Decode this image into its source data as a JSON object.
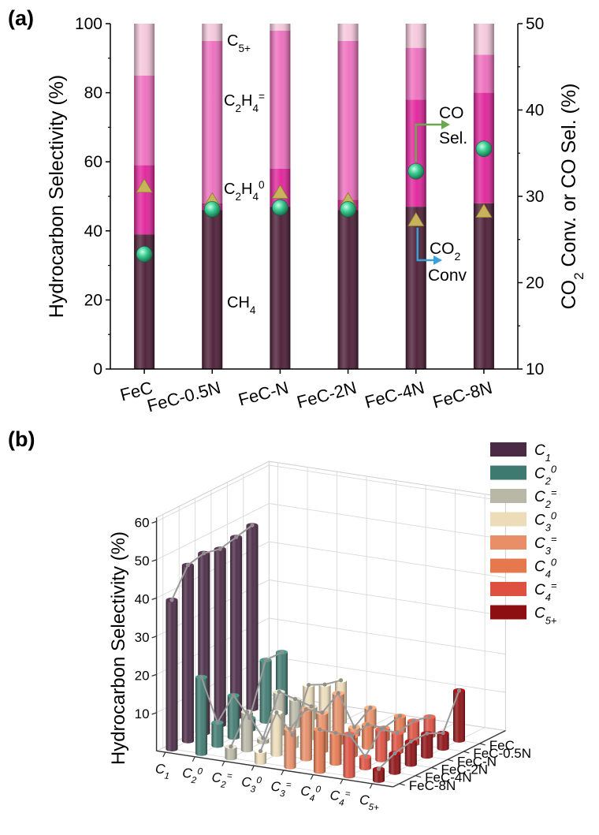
{
  "chart_data": [
    {
      "panel": "(a)",
      "type": "bar",
      "subtype": "stacked bar with dual-axis scatter",
      "categories": [
        "FeC",
        "FeC-0.5N",
        "FeC-N",
        "FeC-2N",
        "FeC-4N",
        "FeC-8N"
      ],
      "ylabel": "Hydrocarbon Selectivity (%)",
      "ylim": [
        0,
        100
      ],
      "yticks": [
        "0",
        "20",
        "40",
        "60",
        "80",
        "100"
      ],
      "y2label": "CO2 Conv. or CO Sel. (%)",
      "y2lim": [
        10,
        50
      ],
      "y2ticks": [
        "10",
        "20",
        "30",
        "40",
        "50"
      ],
      "series": [
        {
          "name": "CH4",
          "label": "CH",
          "label_sub": "4",
          "color": "#4a1a33",
          "values": [
            39,
            46,
            47,
            46,
            47,
            48
          ]
        },
        {
          "name": "C2H4 0",
          "label": "C",
          "label_sub": "2",
          "label_mid": "H",
          "label_sub2": "4",
          "label_sup": "0",
          "color": "#e0209a",
          "values": [
            20,
            2,
            11,
            3,
            31,
            32
          ]
        },
        {
          "name": "C2H4 =",
          "label": "C",
          "label_sub": "2",
          "label_mid": "H",
          "label_sub2": "4",
          "label_sup": "=",
          "color": "#ee6cbd",
          "values": [
            26,
            47,
            40,
            46,
            15,
            11
          ]
        },
        {
          "name": "C5+",
          "label": "C",
          "label_sub": "5+",
          "color": "#f4c6da",
          "values": [
            15,
            5,
            2,
            5,
            7,
            9
          ]
        }
      ],
      "scatter": [
        {
          "name": "CO2 Conv.",
          "axis": "right",
          "marker": "triangle",
          "color": "#c8b25a",
          "values": [
            31.2,
            29.6,
            30.5,
            29.6,
            27.3,
            28.3
          ]
        },
        {
          "name": "CO Sel.",
          "axis": "right",
          "marker": "sphere",
          "color": "#3fcf95",
          "values": [
            23.3,
            28.5,
            28.7,
            28.5,
            32.9,
            35.5
          ]
        }
      ],
      "annotations": [
        {
          "text": "CO",
          "text2": "Sel.",
          "arrow_color": "#6aa84f"
        },
        {
          "text": "CO",
          "text_sub": "2",
          "text2": "Conv",
          "arrow_color": "#3aa0d8"
        }
      ]
    },
    {
      "panel": "(b)",
      "type": "bar",
      "subtype": "3d bar",
      "zlabel": "Hydrocarbon Selectivity (%)",
      "zlim": [
        0,
        60
      ],
      "zticks": [
        "10",
        "20",
        "30",
        "40",
        "50",
        "60"
      ],
      "x_categories": [
        {
          "main": "C",
          "sub": "1",
          "sup": ""
        },
        {
          "main": "C",
          "sub": "2",
          "sup": "0"
        },
        {
          "main": "C",
          "sub": "2",
          "sup": "="
        },
        {
          "main": "C",
          "sub": "3",
          "sup": "0"
        },
        {
          "main": "C",
          "sub": "3",
          "sup": "="
        },
        {
          "main": "C",
          "sub": "4",
          "sup": "0"
        },
        {
          "main": "C",
          "sub": "4",
          "sup": "="
        },
        {
          "main": "C",
          "sub": "5+",
          "sup": ""
        }
      ],
      "y_categories": [
        "FeC",
        "FeC-0.5N",
        "FeC-N",
        "FeC-2N",
        "FeC-4N",
        "FeC-8N"
      ],
      "legend_colors": [
        "#4a2a45",
        "#3f7a70",
        "#b9b8a6",
        "#ecdcb9",
        "#e88f68",
        "#e6784d",
        "#de5040",
        "#8e0f12"
      ],
      "values": [
        [
          39,
          46,
          47,
          46,
          47,
          48
        ],
        [
          20,
          6,
          11,
          3,
          16,
          16
        ],
        [
          3,
          10,
          1,
          11,
          7,
          3
        ],
        [
          3,
          11,
          3,
          14,
          12,
          11
        ],
        [
          10,
          13,
          10,
          13,
          2,
          5
        ],
        [
          11,
          8,
          5,
          6,
          3,
          4
        ],
        [
          11,
          3,
          8,
          5,
          6,
          5
        ],
        [
          3,
          5,
          6,
          6,
          4,
          13
        ]
      ]
    }
  ]
}
